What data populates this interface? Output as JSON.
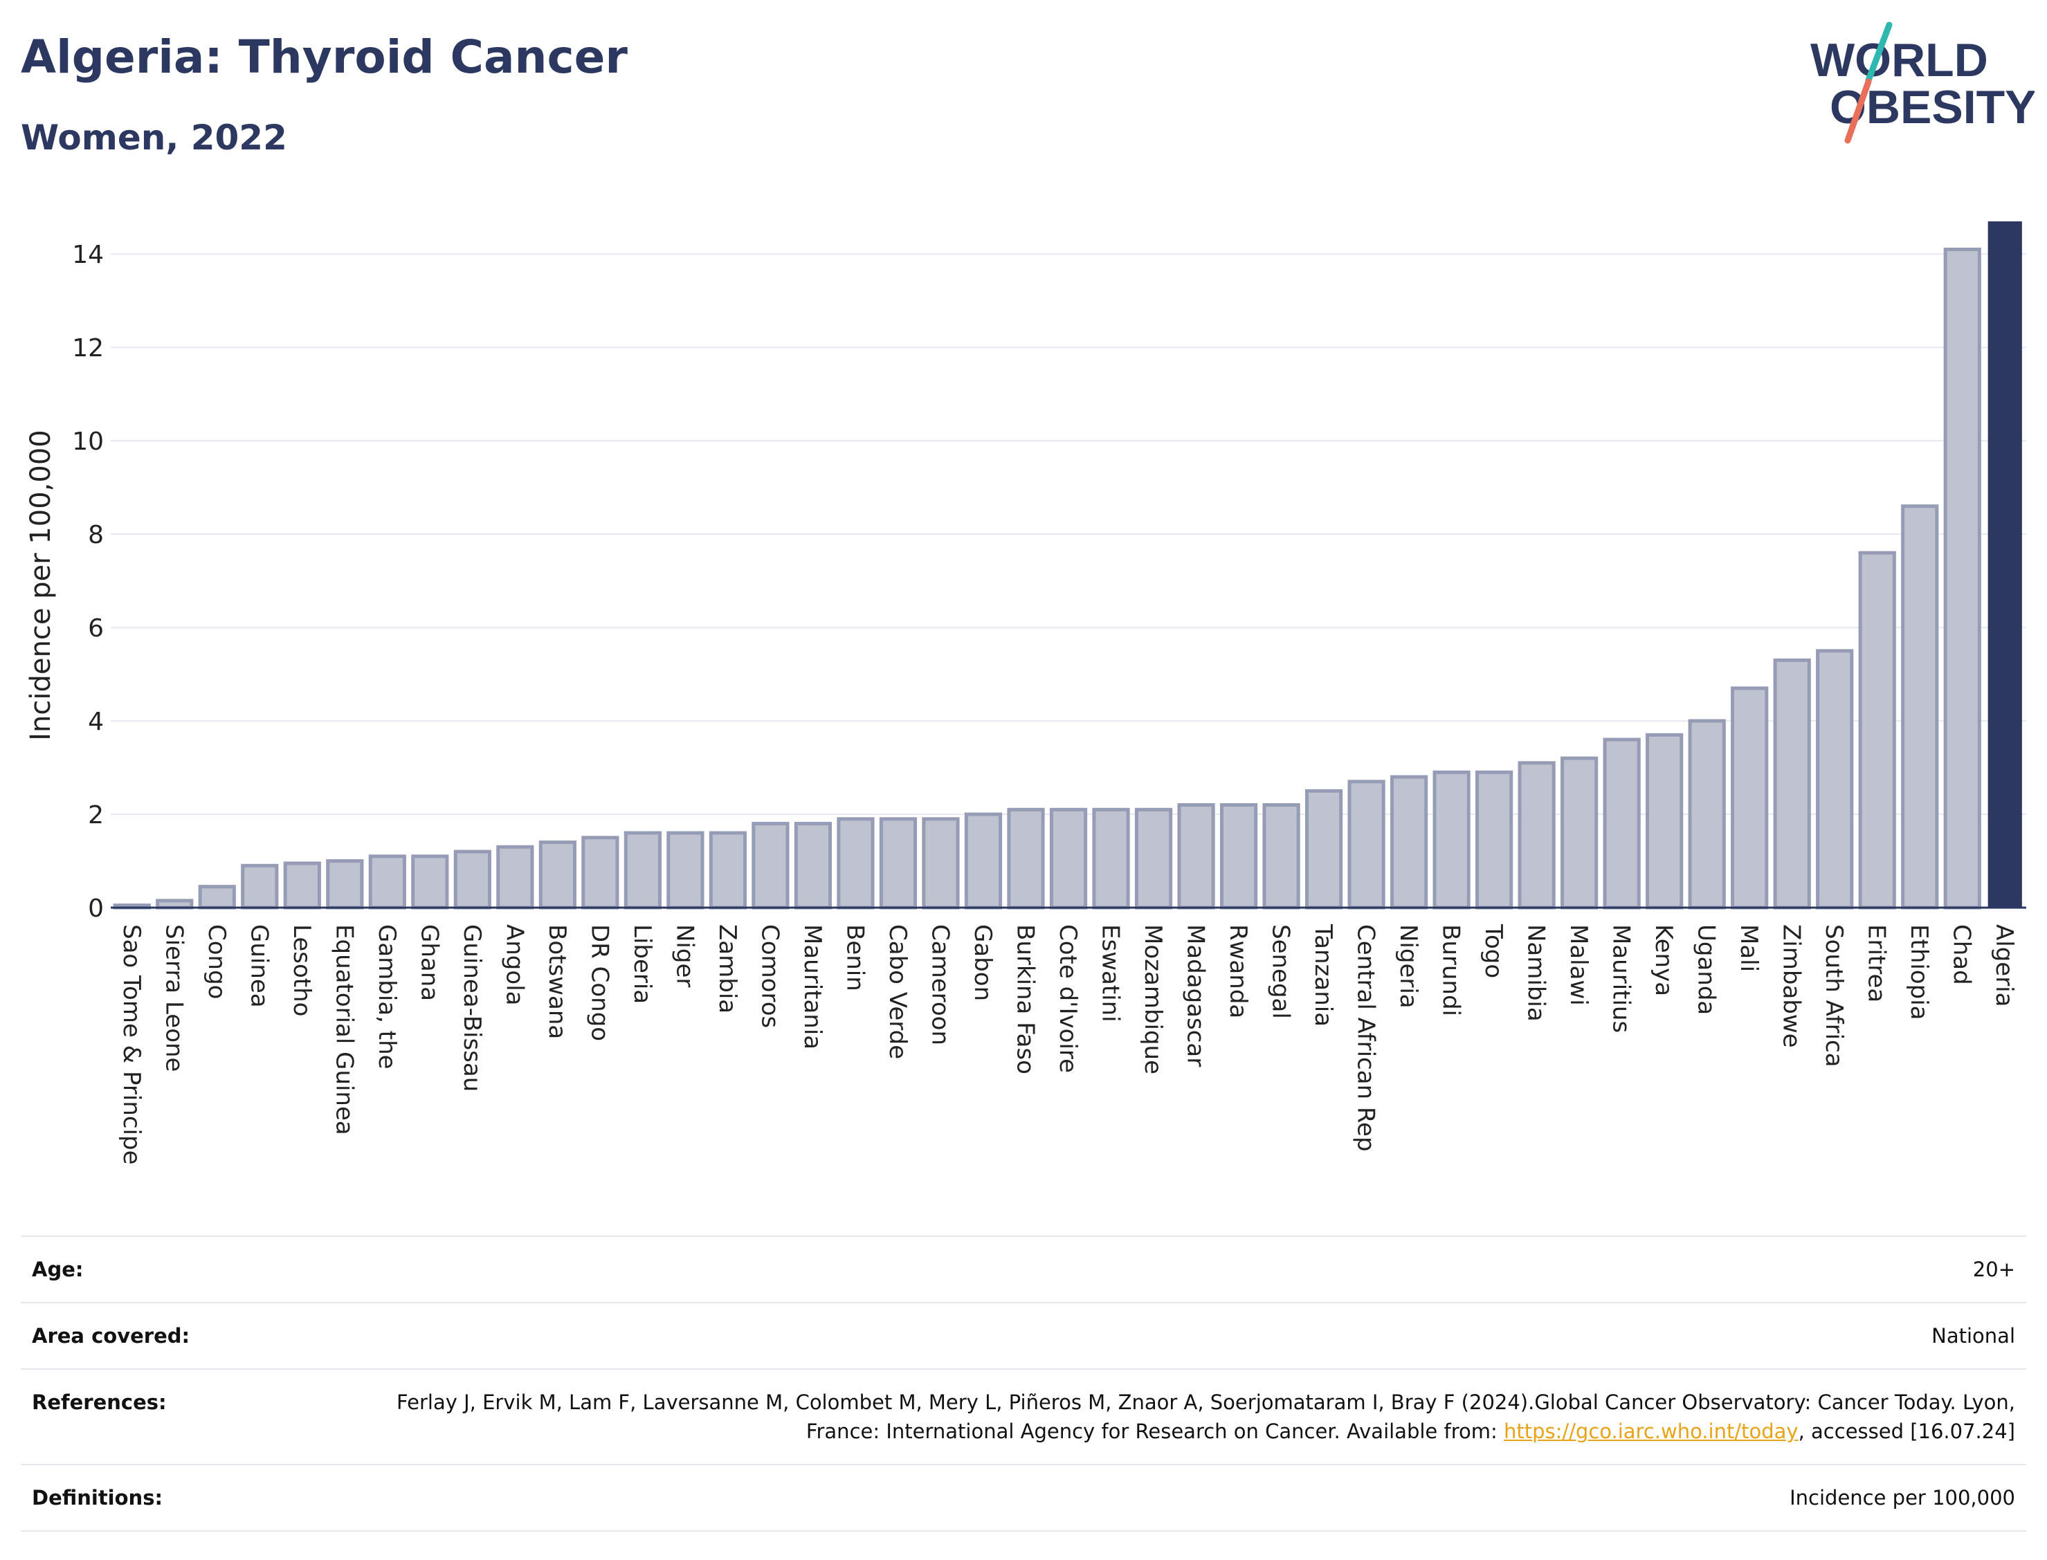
{
  "header": {
    "title": "Algeria: Thyroid Cancer",
    "subtitle": "Women, 2022"
  },
  "logo": {
    "line1": "WORLD",
    "line2": "OBESITY",
    "colors": {
      "text": "#2d3861",
      "slash_top": "#2fb8b0",
      "slash_bottom": "#e8705a"
    }
  },
  "chart_data": {
    "type": "bar",
    "ylabel": "Incidence per 100,000",
    "xlabel": "",
    "ylim": [
      0,
      14.7
    ],
    "yticks": [
      0,
      2,
      4,
      6,
      8,
      10,
      12,
      14
    ],
    "grid": true,
    "highlight": "Algeria",
    "colors": {
      "bar": "#bfc3d0",
      "bar_edge": "#969cb5",
      "highlight": "#2d3861",
      "axis": "#2d3861"
    },
    "categories": [
      "Sao Tome & Principe",
      "Sierra Leone",
      "Congo",
      "Guinea",
      "Lesotho",
      "Equatorial Guinea",
      "Gambia, the",
      "Ghana",
      "Guinea-Bissau",
      "Angola",
      "Botswana",
      "DR Congo",
      "Liberia",
      "Niger",
      "Zambia",
      "Comoros",
      "Mauritania",
      "Benin",
      "Cabo Verde",
      "Cameroon",
      "Gabon",
      "Burkina Faso",
      "Cote d'Ivoire",
      "Eswatini",
      "Mozambique",
      "Madagascar",
      "Rwanda",
      "Senegal",
      "Tanzania",
      "Central African Rep",
      "Nigeria",
      "Burundi",
      "Togo",
      "Namibia",
      "Malawi",
      "Mauritius",
      "Kenya",
      "Uganda",
      "Mali",
      "Zimbabwe",
      "South Africa",
      "Eritrea",
      "Ethiopia",
      "Chad",
      "Algeria"
    ],
    "values": [
      0.05,
      0.15,
      0.45,
      0.9,
      0.95,
      1.0,
      1.1,
      1.1,
      1.2,
      1.3,
      1.4,
      1.5,
      1.6,
      1.6,
      1.6,
      1.8,
      1.8,
      1.9,
      1.9,
      1.9,
      2.0,
      2.1,
      2.1,
      2.1,
      2.1,
      2.2,
      2.2,
      2.2,
      2.5,
      2.7,
      2.8,
      2.9,
      2.9,
      3.1,
      3.2,
      3.6,
      3.7,
      4.0,
      4.7,
      5.3,
      5.5,
      7.6,
      8.6,
      14.1,
      14.7
    ]
  },
  "info": {
    "rows": [
      {
        "label": "Age:",
        "value": "20+"
      },
      {
        "label": "Area covered:",
        "value": "National"
      },
      {
        "label": "Definitions:",
        "value": "Incidence per 100,000"
      }
    ],
    "references": {
      "label": "References:",
      "text_before": "Ferlay J, Ervik M, Lam F, Laversanne M, Colombet M, Mery L, Piñeros M, Znaor A, Soerjomataram I, Bray F (2024).Global Cancer Observatory: Cancer Today. Lyon, France: International Agency for Research on Cancer. Available from: ",
      "link": "https://gco.iarc.who.int/today",
      "text_after": ", accessed [16.07.24]"
    }
  }
}
